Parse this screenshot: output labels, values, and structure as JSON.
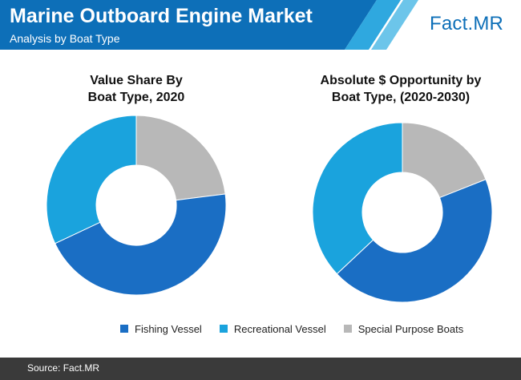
{
  "header": {
    "title": "Marine Outboard Engine Market",
    "subtitle": "Analysis by Boat Type",
    "logo_main": "Fact",
    "logo_suffix": ".MR",
    "colors": {
      "banner": "#0d6fb8",
      "stripe_light": "#6cc5ea",
      "stripe_mid": "#2fa8df"
    }
  },
  "chart_data": [
    {
      "type": "pie",
      "title_line1": "Value Share By",
      "title_line2": "Boat Type, 2020",
      "categories": [
        "Fishing Vessel",
        "Recreational Vessel",
        "Special Purpose Boats"
      ],
      "values": [
        45,
        32,
        23
      ],
      "colors": [
        "#1a6ec4",
        "#1aa3dd",
        "#b8b8b8"
      ]
    },
    {
      "type": "pie",
      "title_line1": "Absolute $ Opportunity by",
      "title_line2": "Boat Type, (2020-2030)",
      "categories": [
        "Fishing Vessel",
        "Recreational Vessel",
        "Special Purpose Boats"
      ],
      "values": [
        44,
        37,
        19
      ],
      "colors": [
        "#1a6ec4",
        "#1aa3dd",
        "#b8b8b8"
      ]
    }
  ],
  "legend": {
    "placement": "bottom",
    "items": [
      {
        "label": "Fishing Vessel",
        "color": "#1a6ec4"
      },
      {
        "label": "Recreational Vessel",
        "color": "#1aa3dd"
      },
      {
        "label": "Special Purpose Boats",
        "color": "#b8b8b8"
      }
    ]
  },
  "footer": {
    "source": "Source: Fact.MR"
  }
}
